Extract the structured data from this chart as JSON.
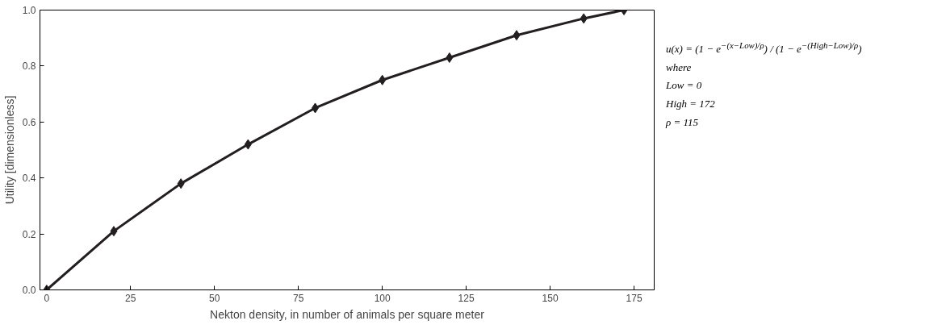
{
  "chart_data": {
    "type": "line",
    "xlabel": "Nekton density, in number of animals per square meter",
    "ylabel": "Utility [dimensionless]",
    "x": [
      0,
      20,
      40,
      60,
      80,
      100,
      120,
      140,
      160,
      172
    ],
    "series": [
      {
        "color": "#231f20",
        "values": [
          0,
          0.21,
          0.38,
          0.52,
          0.65,
          0.75,
          0.83,
          0.91,
          0.97,
          1.0
        ]
      }
    ],
    "marker": "diamond",
    "line_style": "solid",
    "grid": false,
    "xlim": [
      -2,
      181
    ],
    "xticks": [
      0,
      25,
      50,
      75,
      100,
      125,
      150,
      175
    ],
    "ylim": [
      0,
      1
    ],
    "yticks": [
      {
        "value": 0,
        "label": "0.0"
      },
      0.2,
      0.4,
      0.6,
      0.8,
      {
        "value": 1,
        "label": "1.0"
      }
    ],
    "annotations": [
      "u(x) = (1 − e$^{−(x−Low)/ρ}$) / (1 − e$^{−(High−Low)/ρ}$)",
      "where",
      "Low = 0",
      "High = 172",
      "ρ = 115"
    ]
  }
}
